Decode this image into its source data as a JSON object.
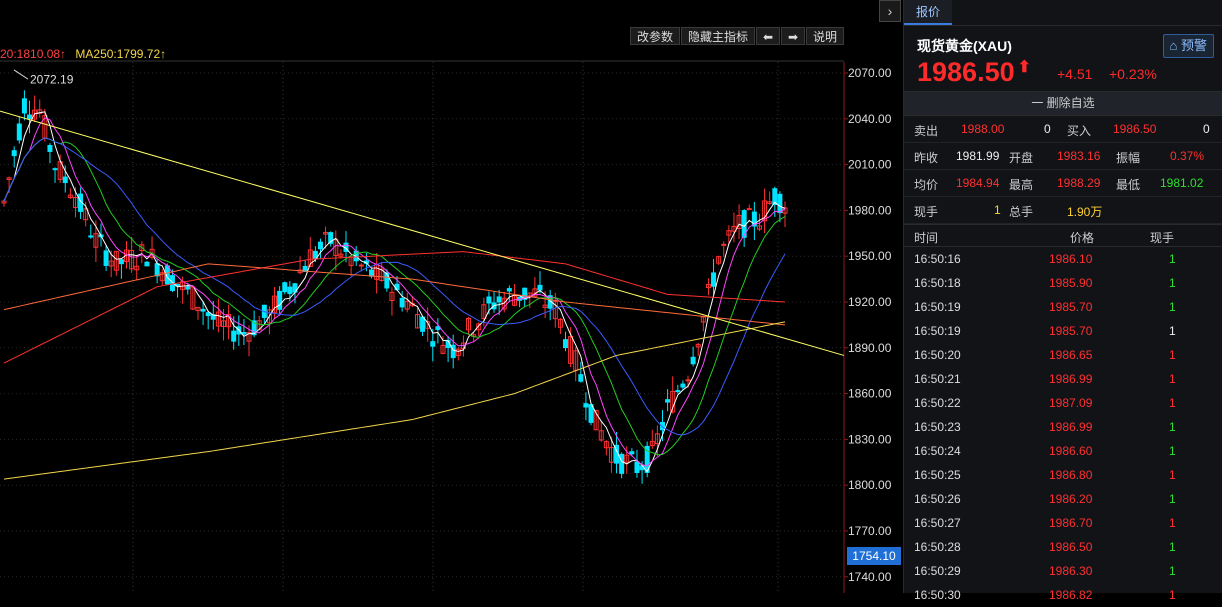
{
  "chart": {
    "ma20_label": "20:1810.08↑",
    "ma250_label": "MA250:1799.72↑",
    "peak_label": "2072.19",
    "current_price_tag": "1754.10",
    "toolbar": {
      "params": "改参数",
      "hide_indicator": "隐藏主指标",
      "left_arrow": "⬅",
      "right_arrow": "➡",
      "help": "说明"
    },
    "expand_icon": "chevron-right-icon",
    "y_ticks": [
      "2070.00",
      "2040.00",
      "2010.00",
      "1980.00",
      "1950.00",
      "1920.00",
      "1890.00",
      "1860.00",
      "1830.00",
      "1800.00",
      "1770.00",
      "1740.00"
    ],
    "colors": {
      "up": "#ff3030",
      "down": "#00e5ff",
      "ma5": "#ffffff",
      "ma10": "#ff44ff",
      "ma20": "#22cc22",
      "ma30": "#3a5bff",
      "ma60": "#ff3030",
      "ma120": "#ff6a3a",
      "ma250": "#f2d64b",
      "trend": "#ffff66"
    }
  },
  "panel": {
    "tab": "报价",
    "name": "现货黄金(XAU)",
    "alert": "预警",
    "price": "1986.50",
    "arrow": "⬆",
    "change": "+4.51",
    "pct": "+0.23%",
    "fav": "一 删除自选",
    "stats": {
      "sell_label": "卖出",
      "sell": "1988.00",
      "sell_vol": "0",
      "buy_label": "买入",
      "buy": "1986.50",
      "buy_vol": "0",
      "prev_label": "昨收",
      "prev": "1981.99",
      "open_label": "开盘",
      "open": "1983.16",
      "amp_label": "振幅",
      "amp": "0.37%",
      "avg_label": "均价",
      "avg": "1984.94",
      "high_label": "最高",
      "high": "1988.29",
      "low_label": "最低",
      "low": "1981.02",
      "cur_label": "现手",
      "cur": "1",
      "total_label": "总手",
      "total": "1.90万"
    },
    "trade_headers": {
      "time": "时间",
      "price": "价格",
      "vol": "现手"
    },
    "trades": [
      {
        "time": "16:50:16",
        "price": "1986.10",
        "vol": "1",
        "c": "green"
      },
      {
        "time": "16:50:18",
        "price": "1985.90",
        "vol": "1",
        "c": "green"
      },
      {
        "time": "16:50:19",
        "price": "1985.70",
        "vol": "1",
        "c": "green"
      },
      {
        "time": "16:50:19",
        "price": "1985.70",
        "vol": "1",
        "c": "white"
      },
      {
        "time": "16:50:20",
        "price": "1986.65",
        "vol": "1",
        "c": "red"
      },
      {
        "time": "16:50:21",
        "price": "1986.99",
        "vol": "1",
        "c": "red"
      },
      {
        "time": "16:50:22",
        "price": "1987.09",
        "vol": "1",
        "c": "red"
      },
      {
        "time": "16:50:23",
        "price": "1986.99",
        "vol": "1",
        "c": "green"
      },
      {
        "time": "16:50:24",
        "price": "1986.60",
        "vol": "1",
        "c": "green"
      },
      {
        "time": "16:50:25",
        "price": "1986.80",
        "vol": "1",
        "c": "red"
      },
      {
        "time": "16:50:26",
        "price": "1986.20",
        "vol": "1",
        "c": "green"
      },
      {
        "time": "16:50:27",
        "price": "1986.70",
        "vol": "1",
        "c": "red"
      },
      {
        "time": "16:50:28",
        "price": "1986.50",
        "vol": "1",
        "c": "green"
      },
      {
        "time": "16:50:29",
        "price": "1986.30",
        "vol": "1",
        "c": "green"
      },
      {
        "time": "16:50:30",
        "price": "1986.82",
        "vol": "1",
        "c": "red"
      }
    ]
  }
}
